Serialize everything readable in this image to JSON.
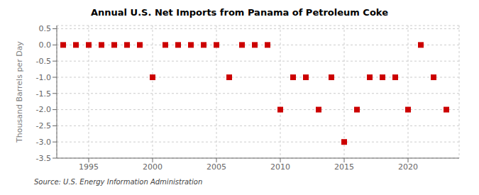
{
  "chart_data": {
    "type": "scatter",
    "title": "Annual U.S. Net Imports from Panama of Petroleum Coke",
    "ylabel": "Thousand Barrels per Day",
    "source": "Source: U.S. Energy Information Administration",
    "x": [
      1993,
      1994,
      1995,
      1996,
      1997,
      1998,
      1999,
      2000,
      2001,
      2002,
      2003,
      2004,
      2005,
      2006,
      2007,
      2008,
      2009,
      2010,
      2011,
      2012,
      2013,
      2014,
      2015,
      2016,
      2017,
      2018,
      2019,
      2020,
      2021,
      2022,
      2023
    ],
    "values": [
      0,
      0,
      0,
      0,
      0,
      0,
      0,
      -1,
      0,
      0,
      0,
      0,
      0,
      -1,
      0,
      0,
      0,
      -2,
      -1,
      -1,
      -2,
      -1,
      -3,
      -2,
      -1,
      -1,
      -1,
      -2,
      0,
      -1,
      -2
    ],
    "color": "#cc0000",
    "marker": "square",
    "xlim": [
      1992.5,
      2024
    ],
    "xticks": [
      1995,
      2000,
      2005,
      2010,
      2015,
      2020
    ],
    "ylim": [
      -3.5,
      0.6
    ],
    "yticks": [
      0.5,
      {
        "value": 0,
        "label": "0.0"
      },
      -0.5,
      {
        "value": -1,
        "label": "-1.0"
      },
      -1.5,
      {
        "value": -2,
        "label": "-2.0"
      },
      -2.5,
      {
        "value": -3,
        "label": "-3.0"
      },
      -3.5
    ],
    "grid": true
  }
}
